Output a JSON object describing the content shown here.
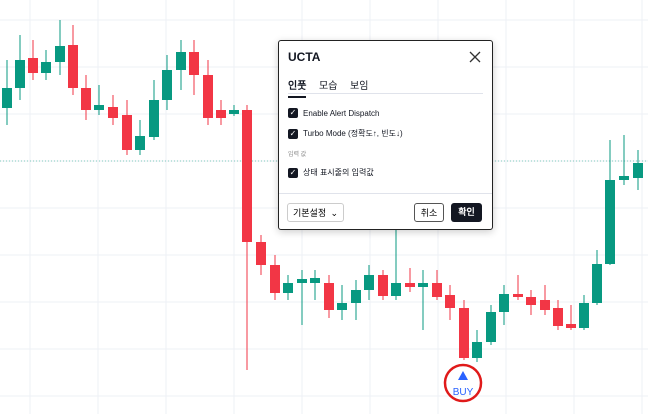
{
  "dialog": {
    "title": "UCTA",
    "tabs": [
      {
        "label": "인풋",
        "active": true
      },
      {
        "label": "모습",
        "active": false
      },
      {
        "label": "보임",
        "active": false
      }
    ],
    "options": [
      {
        "label": "Enable Alert Dispatch",
        "checked": true
      },
      {
        "label": "Turbo Mode (정확도↑, 빈도↓)",
        "checked": true
      }
    ],
    "section_label": "입력 값",
    "section_options": [
      {
        "label": "상태 표시줄의 입력값",
        "checked": true
      }
    ],
    "dropdown": "기본설정",
    "cancel": "취소",
    "confirm": "확인"
  },
  "marker": {
    "label": "BUY"
  }
}
